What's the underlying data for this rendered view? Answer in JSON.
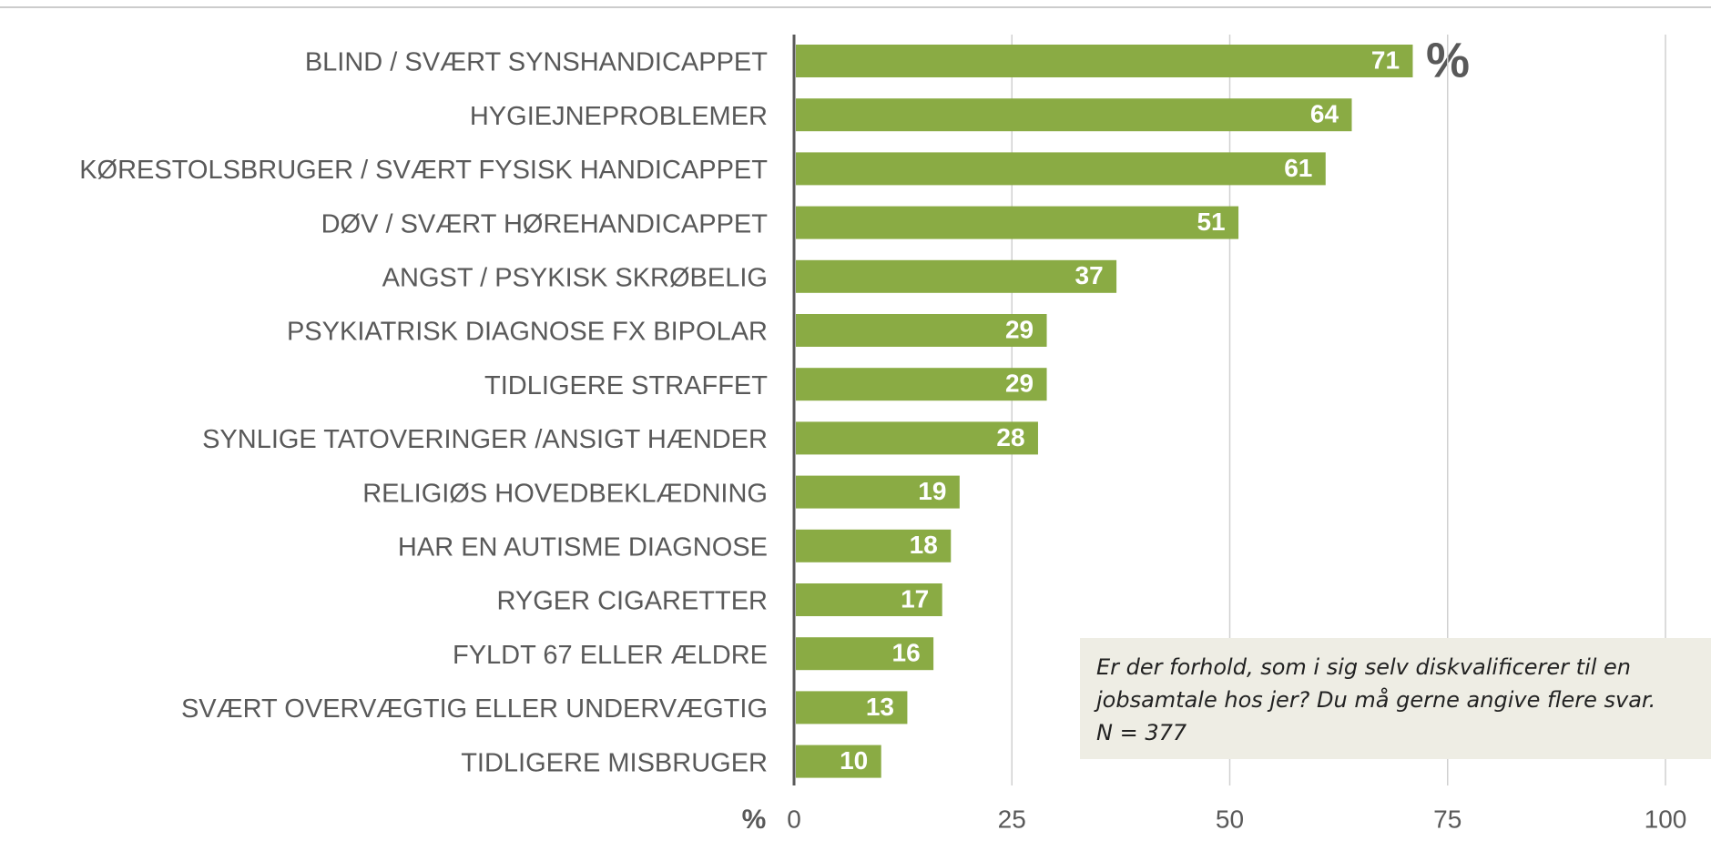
{
  "chart_data": {
    "type": "bar",
    "orientation": "horizontal",
    "categories": [
      "BLIND / SVÆRT SYNSHANDICAPPET",
      "HYGIEJNEPROBLEMER",
      "KØRESTOLSBRUGER / SVÆRT FYSISK HANDICAPPET",
      "DØV / SVÆRT HØREHANDICAPPET",
      "ANGST / PSYKISK SKRØBELIG",
      "PSYKIATRISK DIAGNOSE FX BIPOLAR",
      "TIDLIGERE STRAFFET",
      "SYNLIGE TATOVERINGER /ANSIGT HÆNDER",
      "RELIGIØS HOVEDBEKLÆDNING",
      "HAR EN AUTISME DIAGNOSE",
      "RYGER CIGARETTER",
      "FYLDT 67 ELLER ÆLDRE",
      "SVÆRT OVERVÆGTIG ELLER UNDERVÆGTIG",
      "TIDLIGERE MISBRUGER"
    ],
    "values": [
      71,
      64,
      61,
      51,
      37,
      29,
      29,
      28,
      19,
      18,
      17,
      16,
      13,
      10
    ],
    "color": "#8aab44",
    "xlim": [
      0,
      100
    ],
    "xticks": [
      0,
      25,
      50,
      75,
      100
    ],
    "grid": true,
    "x_label": "%",
    "annotations": [
      "%"
    ],
    "note": "Er der forhold, som i sig selv diskvalificerer til en jobsamtale hos jer? Du må gerne angive flere svar.",
    "n": "N = 377"
  }
}
